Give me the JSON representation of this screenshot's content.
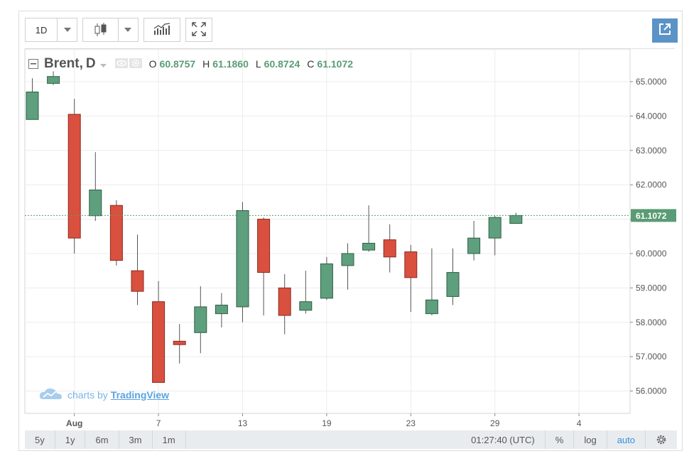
{
  "toolbar": {
    "interval": "1D"
  },
  "legend": {
    "symbol": "Brent",
    "interval_label": "D",
    "open_label": "O",
    "open": "60.8757",
    "high_label": "H",
    "high": "61.1860",
    "low_label": "L",
    "low": "60.8724",
    "close_label": "C",
    "close": "61.1072"
  },
  "watermark": {
    "prefix": "charts by",
    "brand": "TradingView"
  },
  "bottom_bar": {
    "ranges": [
      "5y",
      "1y",
      "6m",
      "3m",
      "1m"
    ],
    "time": "01:27:40 (UTC)",
    "percent": "%",
    "log": "log",
    "auto": "auto"
  },
  "colors": {
    "up": "#5e9f7d",
    "down": "#d9503f",
    "accent": "#5b93c7",
    "price_line": "#5a9c75"
  },
  "chart_data": {
    "type": "candlestick",
    "title": "Brent, D",
    "ylim": [
      55.35,
      65.95
    ],
    "y_ticks": [
      "65.0000",
      "64.0000",
      "63.0000",
      "62.0000",
      "61.0000",
      "60.0000",
      "59.0000",
      "58.0000",
      "57.0000",
      "56.0000"
    ],
    "x_tick_labels": [
      "Aug",
      "7",
      "13",
      "19",
      "23",
      "29",
      "4"
    ],
    "last_price": "61.1072",
    "candles": [
      {
        "o": 63.9,
        "h": 65.1,
        "l": 63.9,
        "c": 64.7
      },
      {
        "o": 64.95,
        "h": 65.3,
        "l": 64.9,
        "c": 65.15
      },
      {
        "o": 64.05,
        "h": 64.5,
        "l": 60.0,
        "c": 60.45
      },
      {
        "o": 61.1,
        "h": 62.95,
        "l": 60.95,
        "c": 61.85
      },
      {
        "o": 61.4,
        "h": 61.55,
        "l": 59.65,
        "c": 59.8
      },
      {
        "o": 59.5,
        "h": 60.55,
        "l": 58.5,
        "c": 58.9
      },
      {
        "o": 58.6,
        "h": 59.2,
        "l": 56.25,
        "c": 56.25
      },
      {
        "o": 57.45,
        "h": 57.95,
        "l": 56.8,
        "c": 57.35
      },
      {
        "o": 57.7,
        "h": 59.05,
        "l": 57.1,
        "c": 58.45
      },
      {
        "o": 58.25,
        "h": 58.85,
        "l": 57.85,
        "c": 58.5
      },
      {
        "o": 58.45,
        "h": 61.5,
        "l": 58.0,
        "c": 61.25
      },
      {
        "o": 61.0,
        "h": 61.05,
        "l": 58.2,
        "c": 59.45
      },
      {
        "o": 59.0,
        "h": 59.4,
        "l": 57.65,
        "c": 58.2
      },
      {
        "o": 58.35,
        "h": 59.5,
        "l": 58.25,
        "c": 58.6
      },
      {
        "o": 58.7,
        "h": 59.9,
        "l": 58.65,
        "c": 59.7
      },
      {
        "o": 59.65,
        "h": 60.3,
        "l": 58.95,
        "c": 60.0
      },
      {
        "o": 60.1,
        "h": 61.4,
        "l": 60.05,
        "c": 60.3
      },
      {
        "o": 60.4,
        "h": 60.85,
        "l": 59.45,
        "c": 59.9
      },
      {
        "o": 60.05,
        "h": 60.25,
        "l": 58.3,
        "c": 59.3
      },
      {
        "o": 58.25,
        "h": 60.15,
        "l": 58.2,
        "c": 58.65
      },
      {
        "o": 58.75,
        "h": 60.15,
        "l": 58.5,
        "c": 59.45
      },
      {
        "o": 60.0,
        "h": 60.95,
        "l": 59.8,
        "c": 60.45
      },
      {
        "o": 60.45,
        "h": 61.1,
        "l": 59.95,
        "c": 61.05
      },
      {
        "o": 60.8757,
        "h": 61.186,
        "l": 60.8724,
        "c": 61.1072
      }
    ]
  }
}
